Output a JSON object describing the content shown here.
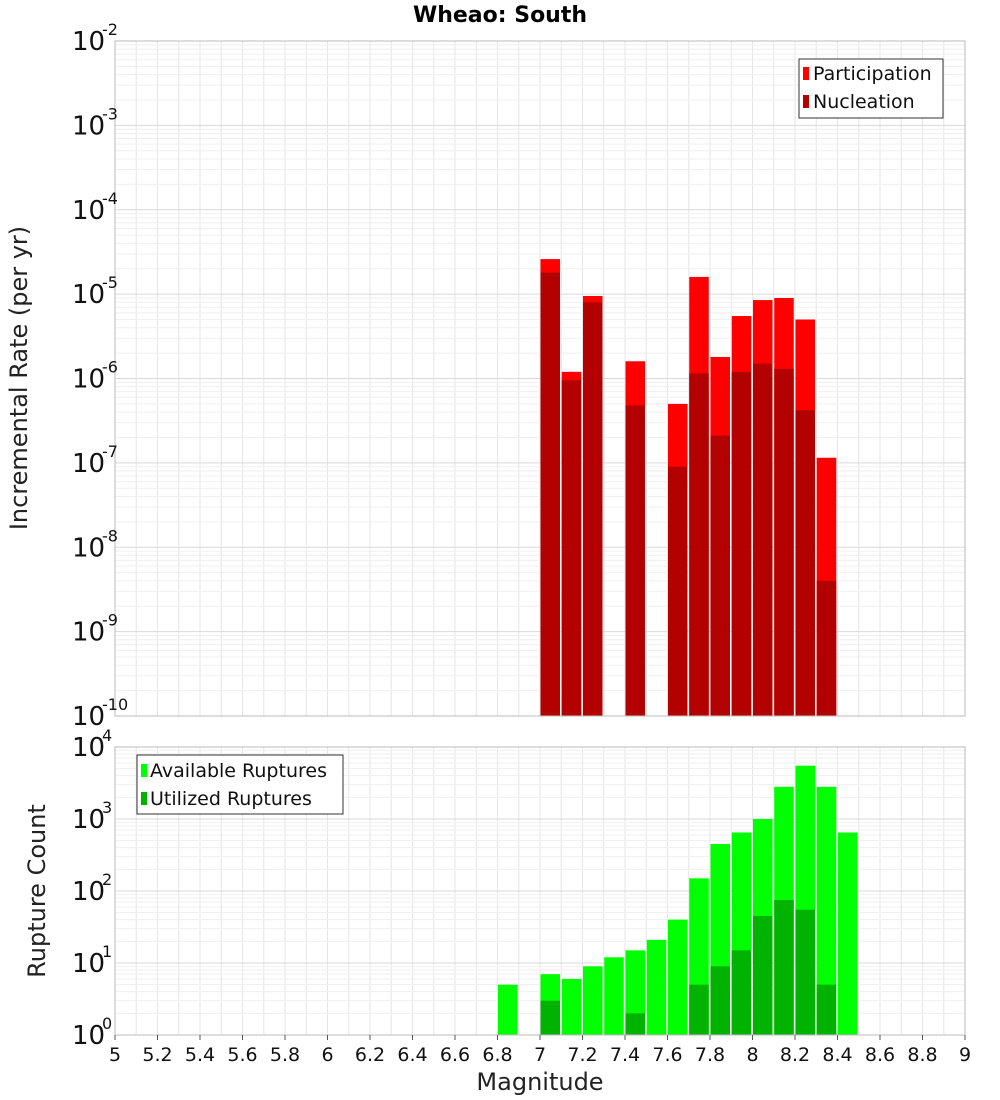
{
  "colors": {
    "participation": "#ff0000",
    "nucleation": "#b30000",
    "available": "#00ff00",
    "utilized": "#00b300",
    "grid": "#e6e6e6",
    "frame": "#bbbbbb"
  },
  "chart_data": [
    {
      "type": "bar",
      "title": "Wheao: South",
      "ylabel": "Incremental Rate (per yr)",
      "xlabel": "",
      "xlim": [
        5,
        9
      ],
      "ylim": [
        1e-10,
        0.01
      ],
      "yscale": "log",
      "ytick_exponents": [
        -10,
        -9,
        -8,
        -7,
        -6,
        -5,
        -4,
        -3,
        -2
      ],
      "grid": true,
      "legend_position": "top-right",
      "x": [
        7.0,
        7.1,
        7.2,
        7.4,
        7.6,
        7.7,
        7.8,
        7.9,
        8.0,
        8.1,
        8.2,
        8.3
      ],
      "series": [
        {
          "name": "Participation",
          "values": [
            2.6e-05,
            1.2e-06,
            9.5e-06,
            1.6e-06,
            5e-07,
            1.6e-05,
            1.8e-06,
            5.5e-06,
            8.5e-06,
            9e-06,
            5e-06,
            1.15e-07
          ]
        },
        {
          "name": "Nucleation",
          "values": [
            1.8e-05,
            9.5e-07,
            8e-06,
            4.8e-07,
            9e-08,
            1.15e-06,
            2.1e-07,
            1.2e-06,
            1.5e-06,
            1.3e-06,
            4.2e-07,
            4e-09
          ]
        }
      ]
    },
    {
      "type": "bar",
      "title": "",
      "ylabel": "Rupture Count",
      "xlabel": "Magnitude",
      "xlim": [
        5,
        9
      ],
      "ylim": [
        1,
        10000
      ],
      "yscale": "log",
      "ytick_exponents": [
        0,
        1,
        2,
        3,
        4
      ],
      "xticks": [
        "5",
        "5.2",
        "5.4",
        "5.6",
        "5.8",
        "6",
        "6.2",
        "6.4",
        "6.6",
        "6.8",
        "7",
        "7.2",
        "7.4",
        "7.6",
        "7.8",
        "8",
        "8.2",
        "8.4",
        "8.6",
        "8.8",
        "9"
      ],
      "grid": true,
      "legend_position": "top-left",
      "x": [
        6.8,
        7.0,
        7.1,
        7.2,
        7.3,
        7.4,
        7.5,
        7.6,
        7.7,
        7.8,
        7.9,
        8.0,
        8.1,
        8.2,
        8.3,
        8.4
      ],
      "series": [
        {
          "name": "Available Ruptures",
          "values": [
            5,
            7,
            6,
            9,
            12,
            15,
            21,
            40,
            150,
            450,
            650,
            1000,
            2800,
            5500,
            2800,
            650
          ]
        },
        {
          "name": "Utilized Ruptures",
          "values": [
            0,
            3,
            1,
            1,
            0,
            2,
            0,
            1,
            5,
            9,
            15,
            45,
            75,
            55,
            5,
            0
          ]
        }
      ]
    }
  ]
}
